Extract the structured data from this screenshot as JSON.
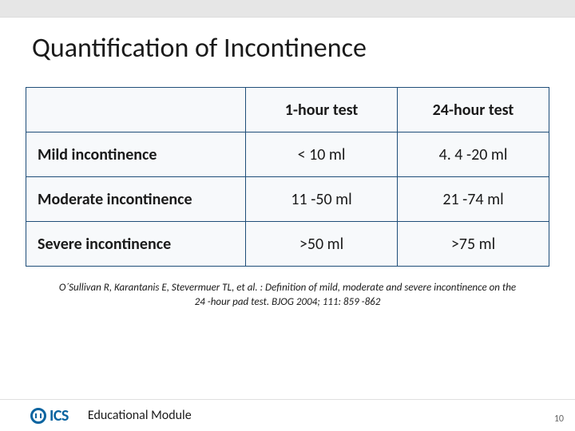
{
  "title": "Quantification of Incontinence",
  "table": {
    "columns": [
      "",
      "1-hour test",
      "24-hour test"
    ],
    "rows": [
      {
        "label": "Mild incontinence",
        "c1": "< 10 ml",
        "c2": "4. 4 -20 ml"
      },
      {
        "label": "Moderate incontinence",
        "c1": "11 -50 ml",
        "c2": "21 -74 ml"
      },
      {
        "label": "Severe incontinence",
        "c1": ">50 ml",
        "c2": ">75 ml"
      }
    ],
    "border_color": "#1f4e79",
    "bg_color": "#f7f9fb",
    "header_fontsize": 20,
    "cell_fontsize": 20,
    "col_widths": [
      "42%",
      "29%",
      "29%"
    ]
  },
  "citation": "O´Sullivan R, Karantanis E, Stevermuer TL, et al. : Definition of mild, moderate and severe incontinence on the 24 -hour pad test. BJOG 2004; 111: 859 -862",
  "footer": {
    "logo_text": "ICS",
    "logo_color": "#0b64a0",
    "module_label": "Educational Module",
    "page_number": "10"
  },
  "colors": {
    "topbar": "#e6e6e6",
    "title_text": "#1a1a1a",
    "body_bg": "#ffffff"
  }
}
